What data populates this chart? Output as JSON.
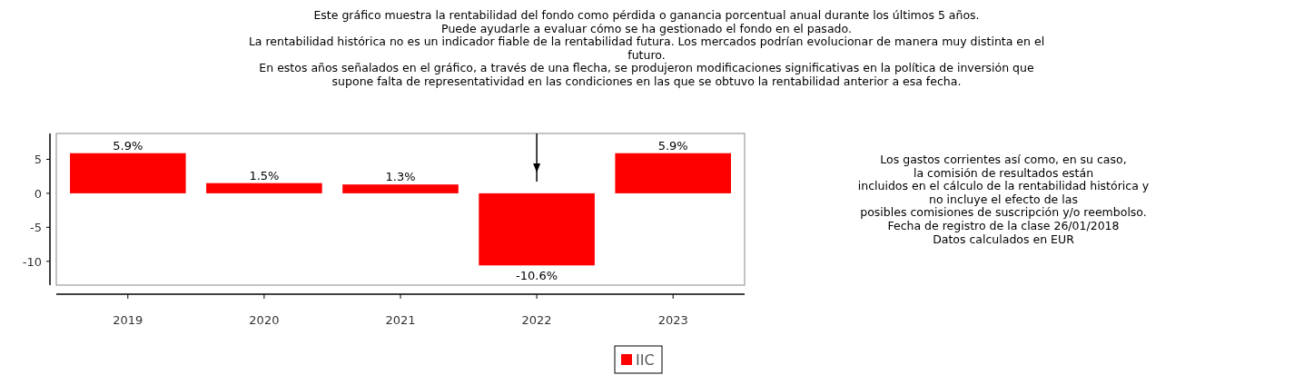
{
  "chart_data": {
    "type": "bar",
    "title": "Este gráfico muestra la rentabilidad del fondo como pérdida o ganancia porcentual anual durante los últimos 5 años.\nPuede ayudarle a evaluar cómo se ha gestionado el fondo en el pasado.\nLa rentabilidad histórica no es un indicador fiable de la rentabilidad futura. Los mercados podrían evolucionar de manera muy distinta en el\nfuturo.\nEn estos años señalados en el gráfico, a través de una flecha, se produjeron modificaciones significativas en la política de inversión que\nsupone falta de representatividad en las condiciones en las que se obtuvo la rentabilidad anterior a esa fecha.",
    "categories": [
      "2019",
      "2020",
      "2021",
      "2022",
      "2023"
    ],
    "series": [
      {
        "name": "IIC",
        "color": "#ff0000",
        "values": [
          5.9,
          1.5,
          1.3,
          -10.6,
          5.9
        ]
      }
    ],
    "value_labels": [
      "5.9%",
      "1.5%",
      "1.3%",
      "-10.6%",
      "5.9%"
    ],
    "ylim": [
      -13.5,
      8.8
    ],
    "yticks": [
      -10,
      -5,
      0,
      5
    ],
    "legend": "bottom",
    "annotations": [
      "Los gastos corrientes así como, en su caso,\nla comisión de resultados están\nincluidos en el cálculo de la rentabilidad histórica y\nno incluye el efecto de las\nposibles comisiones de suscripción y/o reembolso.\nFecha de registro de la clase 26/01/2018\nDatos calculados en EUR"
    ]
  }
}
